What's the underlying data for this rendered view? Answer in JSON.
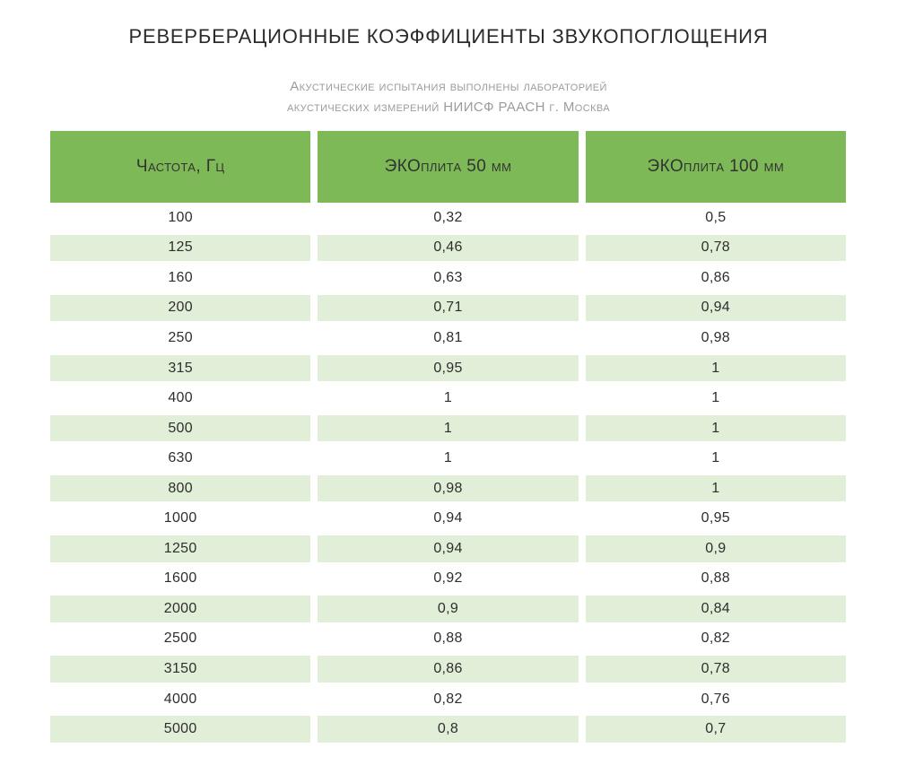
{
  "title": "РЕВЕРБЕРАЦИОННЫЕ КОЭФФИЦИЕНТЫ ЗВУКОПОГЛОЩЕНИЯ",
  "subtitle": {
    "line1": "Акустические испытания выполнены лабораторией",
    "line2": "акустических измерений НИИСФ РААСН г. Москва"
  },
  "colors": {
    "header_green": "#7db956",
    "stripe_green": "#e2efd8",
    "title_text": "#2b2b2b",
    "subtitle_text": "#9b9b9b",
    "cell_text": "#2e2e2e"
  },
  "table": {
    "headers": [
      "Частота, Гц",
      "ЭКОплита 50 мм",
      "ЭКОплита 100 мм"
    ],
    "rows": [
      [
        "100",
        "0,32",
        "0,5"
      ],
      [
        "125",
        "0,46",
        "0,78"
      ],
      [
        "160",
        "0,63",
        "0,86"
      ],
      [
        "200",
        "0,71",
        "0,94"
      ],
      [
        "250",
        "0,81",
        "0,98"
      ],
      [
        "315",
        "0,95",
        "1"
      ],
      [
        "400",
        "1",
        "1"
      ],
      [
        "500",
        "1",
        "1"
      ],
      [
        "630",
        "1",
        "1"
      ],
      [
        "800",
        "0,98",
        "1"
      ],
      [
        "1000",
        "0,94",
        "0,95"
      ],
      [
        "1250",
        "0,94",
        "0,9"
      ],
      [
        "1600",
        "0,92",
        "0,88"
      ],
      [
        "2000",
        "0,9",
        "0,84"
      ],
      [
        "2500",
        "0,88",
        "0,82"
      ],
      [
        "3150",
        "0,86",
        "0,78"
      ],
      [
        "4000",
        "0,82",
        "0,76"
      ],
      [
        "5000",
        "0,8",
        "0,7"
      ]
    ]
  },
  "chart_data": {
    "type": "table",
    "title": "РЕВЕРБЕРАЦИОННЫЕ КОЭФФИЦИЕНТЫ ЗВУКОПОГЛОЩЕНИЯ",
    "subtitle": "Акустические испытания выполнены лабораторией акустических измерений НИИСФ РААСН г. Москва",
    "columns": [
      "Частота, Гц",
      "ЭКОплита 50 мм",
      "ЭКОплита 100 мм"
    ],
    "categories": [
      100,
      125,
      160,
      200,
      250,
      315,
      400,
      500,
      630,
      800,
      1000,
      1250,
      1600,
      2000,
      2500,
      3150,
      4000,
      5000
    ],
    "series": [
      {
        "name": "ЭКОплита 50 мм",
        "values": [
          0.32,
          0.46,
          0.63,
          0.71,
          0.81,
          0.95,
          1,
          1,
          1,
          0.98,
          0.94,
          0.94,
          0.92,
          0.9,
          0.88,
          0.86,
          0.82,
          0.8
        ]
      },
      {
        "name": "ЭКОплита 100 мм",
        "values": [
          0.5,
          0.78,
          0.86,
          0.94,
          0.98,
          1,
          1,
          1,
          1,
          1,
          0.95,
          0.9,
          0.88,
          0.84,
          0.82,
          0.78,
          0.76,
          0.7
        ]
      }
    ],
    "layout": {
      "striped_rows": true,
      "decimal_separator": ",",
      "grid": false,
      "legend_position": "none"
    }
  }
}
